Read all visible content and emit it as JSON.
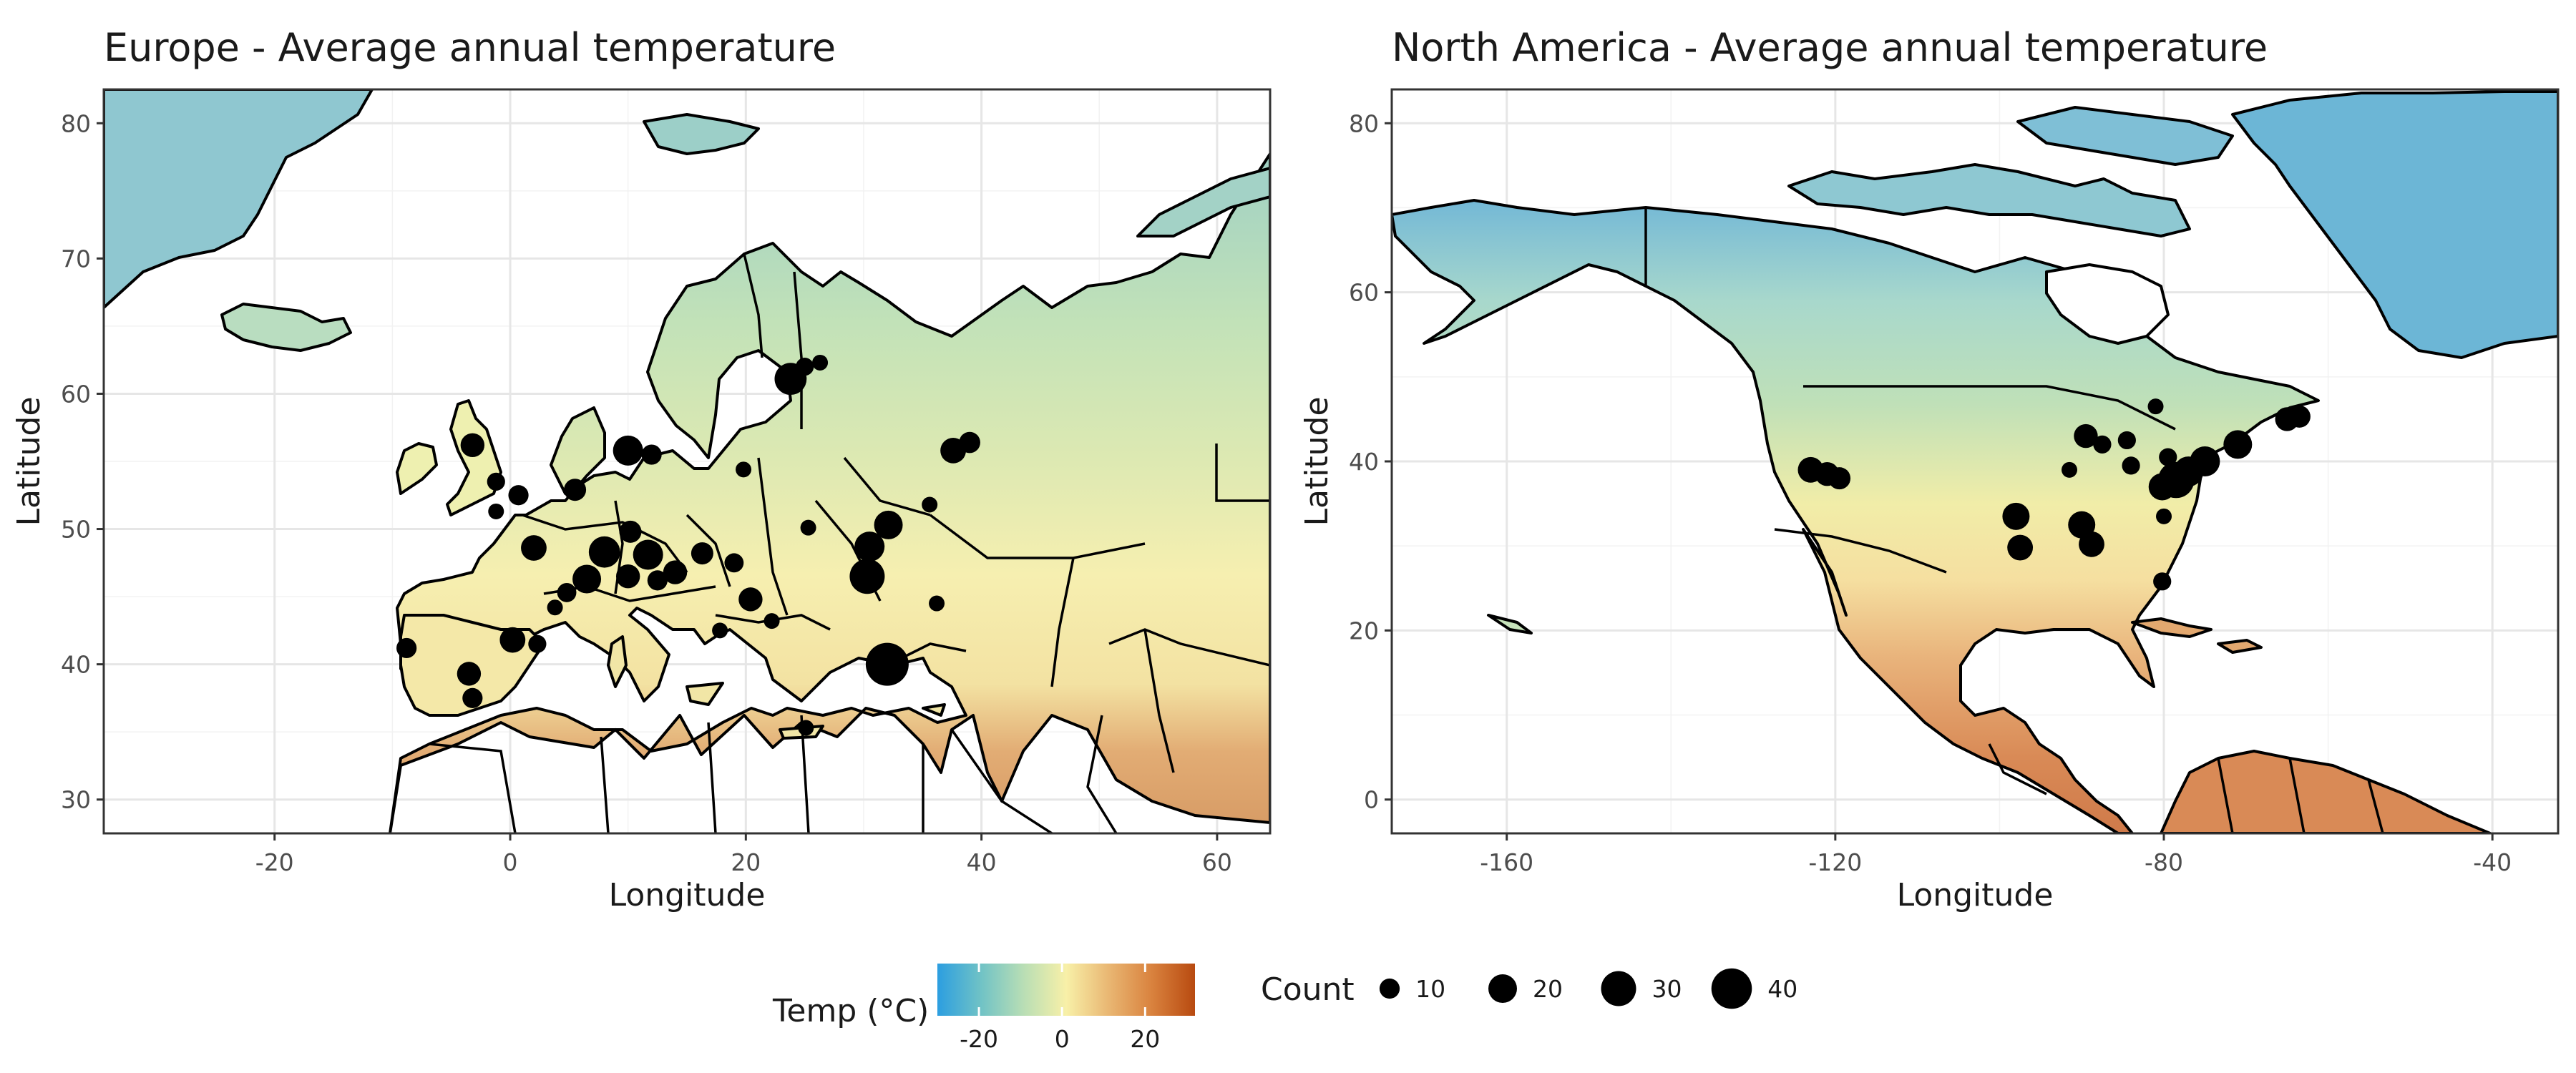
{
  "panels": [
    {
      "title": "Europe - Average annual temperature",
      "xlabel": "Longitude",
      "ylabel": "Latitude",
      "xlim": [
        -34.5,
        64.5
      ],
      "ylim": [
        27.5,
        82.5
      ],
      "x_ticks": [
        -20,
        0,
        20,
        40,
        60
      ],
      "x_tick_labels": [
        "-20",
        "0",
        "20",
        "40",
        "60"
      ],
      "y_ticks": [
        30,
        40,
        50,
        60,
        70,
        80
      ],
      "y_tick_labels": [
        "30",
        "40",
        "50",
        "60",
        "70",
        "80"
      ],
      "points": [
        {
          "lon": 32.0,
          "lat": 40.0,
          "count": 45
        },
        {
          "lon": 30.3,
          "lat": 46.5,
          "count": 30
        },
        {
          "lon": 32.1,
          "lat": 50.3,
          "count": 20
        },
        {
          "lon": 30.5,
          "lat": 48.7,
          "count": 22
        },
        {
          "lon": 36.2,
          "lat": 44.5,
          "count": 6
        },
        {
          "lon": 37.6,
          "lat": 55.8,
          "count": 16
        },
        {
          "lon": 39.0,
          "lat": 56.4,
          "count": 11
        },
        {
          "lon": 23.8,
          "lat": 61.1,
          "count": 25
        },
        {
          "lon": 25.0,
          "lat": 62.0,
          "count": 8
        },
        {
          "lon": 26.3,
          "lat": 62.3,
          "count": 6
        },
        {
          "lon": 10.0,
          "lat": 55.8,
          "count": 22
        },
        {
          "lon": 12.0,
          "lat": 55.5,
          "count": 10
        },
        {
          "lon": -3.2,
          "lat": 56.2,
          "count": 14
        },
        {
          "lon": -1.2,
          "lat": 53.5,
          "count": 8
        },
        {
          "lon": 0.7,
          "lat": 52.5,
          "count": 10
        },
        {
          "lon": -1.2,
          "lat": 51.3,
          "count": 6
        },
        {
          "lon": 5.5,
          "lat": 52.9,
          "count": 12
        },
        {
          "lon": 2.0,
          "lat": 48.6,
          "count": 16
        },
        {
          "lon": 8.0,
          "lat": 48.3,
          "count": 24
        },
        {
          "lon": 10.2,
          "lat": 49.8,
          "count": 12
        },
        {
          "lon": 11.7,
          "lat": 48.1,
          "count": 22
        },
        {
          "lon": 6.5,
          "lat": 46.3,
          "count": 20
        },
        {
          "lon": 4.8,
          "lat": 45.3,
          "count": 9
        },
        {
          "lon": 3.8,
          "lat": 44.2,
          "count": 6
        },
        {
          "lon": 10.0,
          "lat": 46.5,
          "count": 14
        },
        {
          "lon": 14.0,
          "lat": 46.8,
          "count": 14
        },
        {
          "lon": 16.3,
          "lat": 48.2,
          "count": 12
        },
        {
          "lon": 19.0,
          "lat": 47.5,
          "count": 9
        },
        {
          "lon": 20.4,
          "lat": 44.8,
          "count": 14
        },
        {
          "lon": 17.8,
          "lat": 42.5,
          "count": 6
        },
        {
          "lon": 22.2,
          "lat": 43.2,
          "count": 6
        },
        {
          "lon": 19.8,
          "lat": 54.4,
          "count": 6
        },
        {
          "lon": 25.1,
          "lat": 35.3,
          "count": 6
        },
        {
          "lon": -8.8,
          "lat": 41.2,
          "count": 10
        },
        {
          "lon": 0.2,
          "lat": 41.8,
          "count": 16
        },
        {
          "lon": 2.3,
          "lat": 41.5,
          "count": 8
        },
        {
          "lon": -3.5,
          "lat": 39.3,
          "count": 14
        },
        {
          "lon": -3.2,
          "lat": 37.5,
          "count": 10
        },
        {
          "lon": 12.5,
          "lat": 46.2,
          "count": 10
        },
        {
          "lon": 25.3,
          "lat": 50.1,
          "count": 6
        },
        {
          "lon": 35.6,
          "lat": 51.8,
          "count": 6
        }
      ]
    },
    {
      "title": "North America - Average annual temperature",
      "xlabel": "Longitude",
      "ylabel": "Latitude",
      "xlim": [
        -174,
        -32
      ],
      "ylim": [
        -4,
        84
      ],
      "x_ticks": [
        -160,
        -120,
        -80,
        -40
      ],
      "x_tick_labels": [
        "-160",
        "-120",
        "-80",
        "-40"
      ],
      "y_ticks": [
        0,
        20,
        40,
        60,
        80
      ],
      "y_tick_labels": [
        "0",
        "20",
        "40",
        "60",
        "80"
      ],
      "points": [
        {
          "lon": -78.5,
          "lat": 37.8,
          "count": 32
        },
        {
          "lon": -77.0,
          "lat": 38.8,
          "count": 22
        },
        {
          "lon": -80.2,
          "lat": 37.0,
          "count": 18
        },
        {
          "lon": -75.0,
          "lat": 40.0,
          "count": 22
        },
        {
          "lon": -71.0,
          "lat": 42.0,
          "count": 20
        },
        {
          "lon": -65.0,
          "lat": 45.0,
          "count": 14
        },
        {
          "lon": -63.5,
          "lat": 45.3,
          "count": 12
        },
        {
          "lon": -80.0,
          "lat": 33.5,
          "count": 6
        },
        {
          "lon": -80.2,
          "lat": 25.8,
          "count": 8
        },
        {
          "lon": -90.0,
          "lat": 32.5,
          "count": 18
        },
        {
          "lon": -88.8,
          "lat": 30.2,
          "count": 16
        },
        {
          "lon": -97.5,
          "lat": 29.8,
          "count": 16
        },
        {
          "lon": -98.0,
          "lat": 33.5,
          "count": 18
        },
        {
          "lon": -89.5,
          "lat": 43.0,
          "count": 14
        },
        {
          "lon": -87.5,
          "lat": 42.0,
          "count": 8
        },
        {
          "lon": -84.5,
          "lat": 42.5,
          "count": 8
        },
        {
          "lon": -81.0,
          "lat": 46.5,
          "count": 6
        },
        {
          "lon": -84.0,
          "lat": 39.5,
          "count": 8
        },
        {
          "lon": -123.0,
          "lat": 39.0,
          "count": 16
        },
        {
          "lon": -121.0,
          "lat": 38.5,
          "count": 14
        },
        {
          "lon": -119.5,
          "lat": 38.0,
          "count": 12
        },
        {
          "lon": -91.5,
          "lat": 39.0,
          "count": 6
        },
        {
          "lon": -79.5,
          "lat": 40.5,
          "count": 8
        }
      ]
    }
  ],
  "legend": {
    "temp_title": "Temp (°C)",
    "temp_ticks": [
      "-20",
      "0",
      "20"
    ],
    "temp_range": [
      -30,
      32
    ],
    "temp_tick_values": [
      -20,
      0,
      20
    ],
    "temp_colors": [
      "#2c9ee0",
      "#6fc2c6",
      "#b8deb5",
      "#f8f0a8",
      "#e9b672",
      "#d9823e",
      "#b84a10"
    ],
    "count_title": "Count",
    "count_values": [
      10,
      20,
      30,
      40
    ],
    "count_labels": [
      "10",
      "20",
      "30",
      "40"
    ]
  }
}
